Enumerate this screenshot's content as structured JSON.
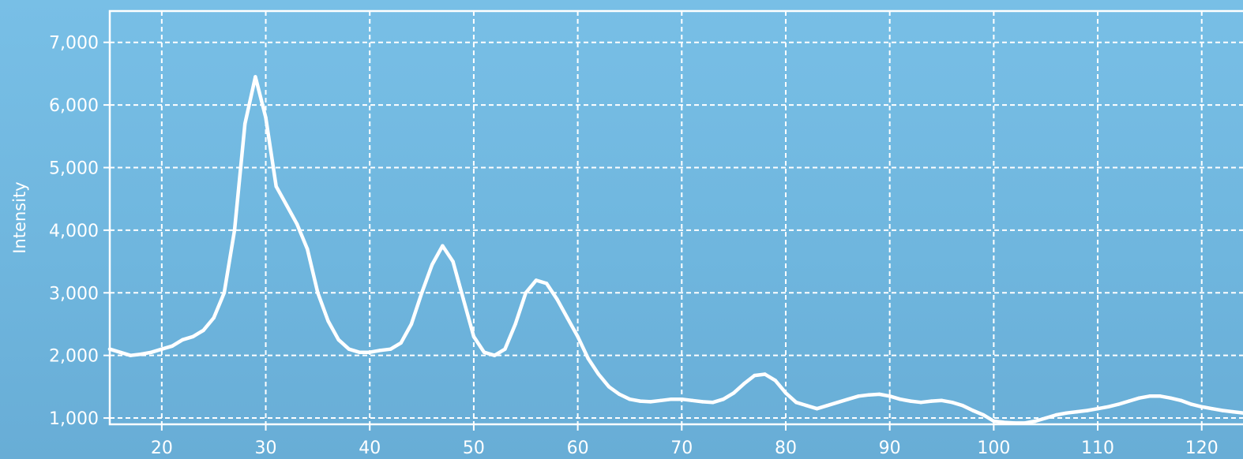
{
  "chart_data": {
    "type": "line",
    "title": "",
    "xlabel": "",
    "ylabel": "Intensity",
    "xlim": [
      15,
      124.5
    ],
    "ylim": [
      900,
      7500
    ],
    "grid": true,
    "x_ticks": [
      20,
      30,
      40,
      50,
      60,
      70,
      80,
      90,
      100,
      110,
      120
    ],
    "x_tick_labels": [
      "20",
      "30",
      "40",
      "50",
      "60",
      "70",
      "80",
      "90",
      "100",
      "110",
      "120"
    ],
    "y_ticks": [
      1000,
      2000,
      3000,
      4000,
      5000,
      6000,
      7000
    ],
    "y_tick_labels": [
      "1,000",
      "2,000",
      "3,000",
      "4,000",
      "5,000",
      "6,000",
      "7,000"
    ],
    "series": [
      {
        "color": "#ffffff",
        "x": [
          15,
          16,
          17,
          18,
          19,
          20,
          21,
          22,
          23,
          24,
          25,
          26,
          27,
          28,
          29,
          30,
          31,
          32,
          33,
          34,
          35,
          36,
          37,
          38,
          39,
          40,
          41,
          42,
          43,
          44,
          45,
          46,
          47,
          48,
          49,
          50,
          51,
          52,
          53,
          54,
          55,
          56,
          57,
          58,
          59,
          60,
          61,
          62,
          63,
          64,
          65,
          66,
          67,
          68,
          69,
          70,
          71,
          72,
          73,
          74,
          75,
          76,
          77,
          78,
          79,
          80,
          81,
          82,
          83,
          84,
          85,
          86,
          87,
          88,
          89,
          90,
          91,
          92,
          93,
          94,
          95,
          96,
          97,
          98,
          99,
          100,
          101,
          102,
          103,
          104,
          105,
          106,
          107,
          108,
          109,
          110,
          111,
          112,
          113,
          114,
          115,
          116,
          117,
          118,
          119,
          120,
          121,
          122,
          123,
          124
        ],
        "y": [
          2100,
          2050,
          2000,
          2020,
          2050,
          2100,
          2150,
          2250,
          2300,
          2400,
          2600,
          3000,
          4000,
          5700,
          6450,
          5800,
          4700,
          4400,
          4100,
          3700,
          3000,
          2550,
          2250,
          2100,
          2050,
          2050,
          2080,
          2100,
          2200,
          2500,
          3000,
          3450,
          3750,
          3500,
          2900,
          2300,
          2050,
          2000,
          2100,
          2500,
          3000,
          3200,
          3150,
          2900,
          2600,
          2300,
          1950,
          1700,
          1500,
          1380,
          1300,
          1270,
          1260,
          1280,
          1300,
          1300,
          1280,
          1260,
          1250,
          1300,
          1400,
          1550,
          1680,
          1700,
          1600,
          1400,
          1250,
          1200,
          1150,
          1200,
          1250,
          1300,
          1350,
          1370,
          1380,
          1350,
          1300,
          1270,
          1250,
          1270,
          1280,
          1250,
          1200,
          1120,
          1050,
          950,
          930,
          920,
          920,
          950,
          1000,
          1050,
          1080,
          1100,
          1120,
          1150,
          1180,
          1220,
          1270,
          1320,
          1350,
          1350,
          1320,
          1280,
          1220,
          1180,
          1150,
          1120,
          1100,
          1080
        ]
      }
    ]
  }
}
